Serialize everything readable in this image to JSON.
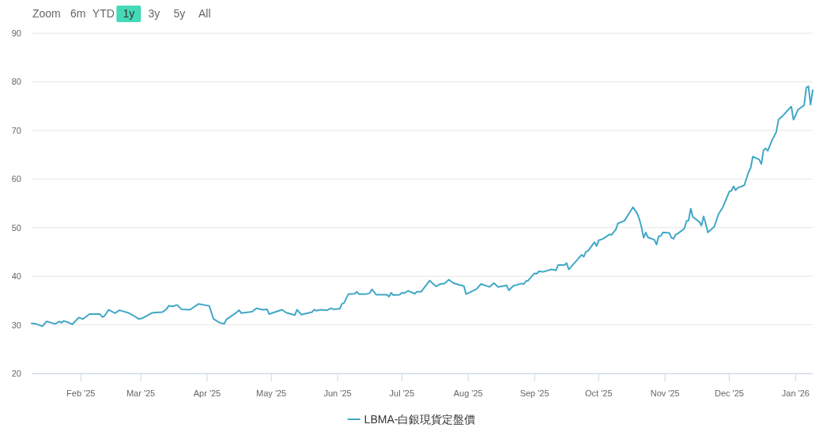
{
  "chart_data": {
    "type": "line",
    "x": [
      "2025-01-09",
      "2025-01-11",
      "2025-01-14",
      "2025-01-16",
      "2025-01-20",
      "2025-01-22",
      "2025-01-23",
      "2025-01-24",
      "2025-01-26",
      "2025-01-28",
      "2025-01-31",
      "2025-02-02",
      "2025-02-05",
      "2025-02-07",
      "2025-02-10",
      "2025-02-11",
      "2025-02-12",
      "2025-02-14",
      "2025-02-17",
      "2025-02-19",
      "2025-02-23",
      "2025-02-26",
      "2025-02-28",
      "2025-03-02",
      "2025-03-06",
      "2025-03-07",
      "2025-03-11",
      "2025-03-12",
      "2025-03-13",
      "2025-03-14",
      "2025-03-16",
      "2025-03-18",
      "2025-03-20",
      "2025-03-24",
      "2025-03-28",
      "2025-04-02",
      "2025-04-04",
      "2025-04-07",
      "2025-04-09",
      "2025-04-10",
      "2025-04-14",
      "2025-04-16",
      "2025-04-17",
      "2025-04-22",
      "2025-04-24",
      "2025-04-27",
      "2025-04-29",
      "2025-04-30",
      "2025-05-06",
      "2025-05-08",
      "2025-05-12",
      "2025-05-13",
      "2025-05-15",
      "2025-05-20",
      "2025-05-21",
      "2025-05-22",
      "2025-05-24",
      "2025-05-27",
      "2025-05-29",
      "2025-05-30",
      "2025-06-02",
      "2025-06-03",
      "2025-06-04",
      "2025-06-06",
      "2025-06-09",
      "2025-06-10",
      "2025-06-11",
      "2025-06-14",
      "2025-06-16",
      "2025-06-17",
      "2025-06-19",
      "2025-06-24",
      "2025-06-25",
      "2025-06-26",
      "2025-06-27",
      "2025-06-30",
      "2025-07-01",
      "2025-07-02",
      "2025-07-04",
      "2025-07-07",
      "2025-07-08",
      "2025-07-10",
      "2025-07-14",
      "2025-07-17",
      "2025-07-19",
      "2025-07-21",
      "2025-07-23",
      "2025-07-25",
      "2025-07-28",
      "2025-07-30",
      "2025-07-31",
      "2025-08-05",
      "2025-08-07",
      "2025-08-11",
      "2025-08-13",
      "2025-08-15",
      "2025-08-19",
      "2025-08-20",
      "2025-08-22",
      "2025-08-26",
      "2025-08-27",
      "2025-08-28",
      "2025-08-29",
      "2025-09-01",
      "2025-09-02",
      "2025-09-03",
      "2025-09-05",
      "2025-09-09",
      "2025-09-11",
      "2025-09-12",
      "2025-09-15",
      "2025-09-16",
      "2025-09-17",
      "2025-09-23",
      "2025-09-24",
      "2025-09-25",
      "2025-09-26",
      "2025-09-29",
      "2025-09-30",
      "2025-10-01",
      "2025-10-03",
      "2025-10-06",
      "2025-10-07",
      "2025-10-09",
      "2025-10-10",
      "2025-10-13",
      "2025-10-15",
      "2025-10-17",
      "2025-10-19",
      "2025-10-20",
      "2025-10-21",
      "2025-10-22",
      "2025-10-23",
      "2025-10-24",
      "2025-10-27",
      "2025-10-28",
      "2025-10-29",
      "2025-10-30",
      "2025-10-31",
      "2025-11-03",
      "2025-11-04",
      "2025-11-05",
      "2025-11-06",
      "2025-11-07",
      "2025-11-10",
      "2025-11-11",
      "2025-11-12",
      "2025-11-13",
      "2025-11-14",
      "2025-11-17",
      "2025-11-18",
      "2025-11-19",
      "2025-11-20",
      "2025-11-21",
      "2025-11-24",
      "2025-11-26",
      "2025-11-28",
      "2025-12-01",
      "2025-12-02",
      "2025-12-03",
      "2025-12-04",
      "2025-12-05",
      "2025-12-08",
      "2025-12-10",
      "2025-12-11",
      "2025-12-12",
      "2025-12-15",
      "2025-12-16",
      "2025-12-17",
      "2025-12-18",
      "2025-12-19",
      "2025-12-21",
      "2025-12-23",
      "2025-12-24",
      "2025-12-26",
      "2025-12-28",
      "2025-12-30",
      "2025-12-31",
      "2026-01-01",
      "2026-01-02",
      "2026-01-05",
      "2026-01-06",
      "2026-01-07",
      "2026-01-08",
      "2026-01-09"
    ],
    "series": [
      {
        "name": "LBMA-白銀現貨定盤價",
        "color": "#40a8c6",
        "values": [
          30.3,
          30.2,
          29.7,
          30.7,
          30.2,
          30.7,
          30.4,
          30.8,
          30.5,
          30.1,
          31.5,
          31.2,
          32.2,
          32.2,
          32.2,
          31.6,
          31.8,
          33.1,
          32.4,
          33.0,
          32.5,
          31.8,
          31.2,
          31.4,
          32.4,
          32.5,
          32.6,
          32.9,
          33.2,
          33.9,
          33.8,
          34.1,
          33.2,
          33.1,
          34.3,
          33.9,
          31.2,
          30.4,
          30.2,
          31.1,
          32.3,
          33.0,
          32.4,
          32.7,
          33.4,
          33.1,
          33.2,
          32.2,
          33.1,
          32.5,
          32.0,
          33.1,
          32.1,
          32.6,
          33.1,
          32.9,
          33.1,
          33.0,
          33.4,
          33.2,
          33.3,
          34.3,
          34.5,
          36.3,
          36.4,
          36.8,
          36.3,
          36.3,
          36.5,
          37.3,
          36.2,
          36.2,
          35.8,
          36.6,
          36.1,
          36.2,
          36.6,
          36.5,
          37.0,
          36.4,
          36.8,
          36.8,
          39.1,
          37.9,
          38.4,
          38.5,
          39.3,
          38.6,
          38.2,
          38.0,
          36.3,
          37.4,
          38.4,
          37.8,
          38.6,
          37.8,
          38.1,
          37.1,
          38.0,
          38.5,
          38.4,
          39.0,
          39.1,
          40.6,
          40.5,
          41.0,
          40.9,
          41.4,
          41.2,
          42.3,
          42.3,
          42.7,
          41.4,
          44.4,
          44.0,
          45.0,
          45.2,
          47.0,
          46.2,
          47.4,
          47.7,
          48.6,
          48.5,
          49.6,
          50.9,
          51.4,
          52.8,
          54.2,
          52.9,
          51.7,
          50.1,
          47.9,
          49.0,
          48.0,
          47.5,
          46.5,
          48.2,
          48.3,
          49.0,
          48.9,
          47.9,
          47.7,
          48.6,
          48.8,
          49.8,
          51.3,
          51.5,
          53.9,
          52.2,
          51.2,
          50.4,
          52.3,
          50.8,
          49.0,
          50.2,
          52.8,
          54.2,
          57.4,
          57.6,
          58.5,
          57.7,
          58.2,
          58.7,
          61.4,
          62.3,
          64.6,
          64.0,
          63.1,
          65.9,
          66.3,
          65.8,
          68.0,
          69.7,
          72.2,
          73.0,
          74.0,
          74.9,
          72.2,
          73.1,
          74.2,
          75.2,
          78.8,
          79.1,
          75.3,
          78.3
        ]
      }
    ],
    "xlim": [
      "2025-01-09",
      "2026-01-09"
    ],
    "xticks": [
      {
        "value": "2025-02-01",
        "label": "Feb '25"
      },
      {
        "value": "2025-03-01",
        "label": "Mar '25"
      },
      {
        "value": "2025-04-01",
        "label": "Apr '25"
      },
      {
        "value": "2025-05-01",
        "label": "May '25"
      },
      {
        "value": "2025-06-01",
        "label": "Jun '25"
      },
      {
        "value": "2025-07-01",
        "label": "Jul '25"
      },
      {
        "value": "2025-08-01",
        "label": "Aug '25"
      },
      {
        "value": "2025-09-01",
        "label": "Sep '25"
      },
      {
        "value": "2025-10-01",
        "label": "Oct '25"
      },
      {
        "value": "2025-11-01",
        "label": "Nov '25"
      },
      {
        "value": "2025-12-01",
        "label": "Dec '25"
      },
      {
        "value": "2026-01-01",
        "label": "Jan '26"
      }
    ],
    "ylim": [
      20,
      90
    ],
    "yticks": [
      20,
      30,
      40,
      50,
      60,
      70,
      80,
      90
    ],
    "grid": "y",
    "legend": "bottom",
    "line_style": "solid",
    "annotations": [
      "Zoom",
      "6m",
      "YTD",
      "1y",
      "3y",
      "5y",
      "All"
    ]
  }
}
